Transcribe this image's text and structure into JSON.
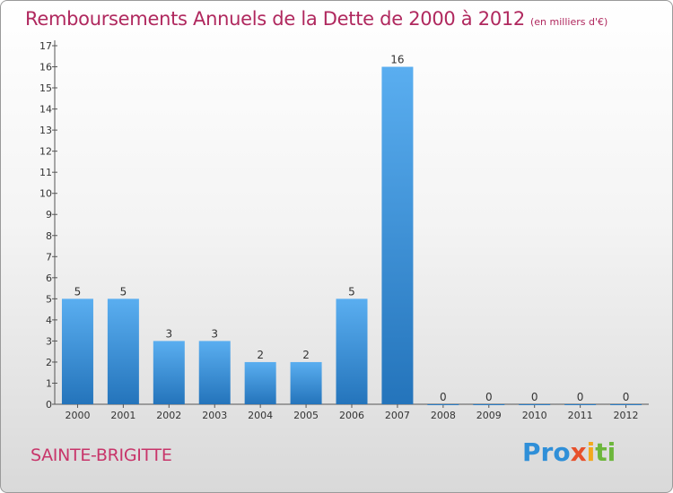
{
  "chart_data": {
    "type": "bar",
    "title": "Remboursements Annuels de la Dette de 2000 à 2012",
    "unit_note": "(en milliers d'€)",
    "categories": [
      "2000",
      "2001",
      "2002",
      "2003",
      "2004",
      "2005",
      "2006",
      "2007",
      "2008",
      "2009",
      "2010",
      "2011",
      "2012"
    ],
    "values": [
      5,
      5,
      3,
      3,
      2,
      2,
      5,
      16,
      0,
      0,
      0,
      0,
      0
    ],
    "ylim": [
      0,
      17
    ],
    "yticks": [
      "0",
      "1",
      "2",
      "3",
      "4",
      "5",
      "6",
      "7",
      "8",
      "9",
      "10",
      "11",
      "12",
      "13",
      "14",
      "15",
      "16",
      "17"
    ],
    "bar_color": "#3a8fd6",
    "grid": false
  },
  "footer": {
    "commune": "SAINTE-BRIGITTE",
    "brand_parts": [
      "Pro",
      "x",
      "i",
      "ti"
    ]
  }
}
